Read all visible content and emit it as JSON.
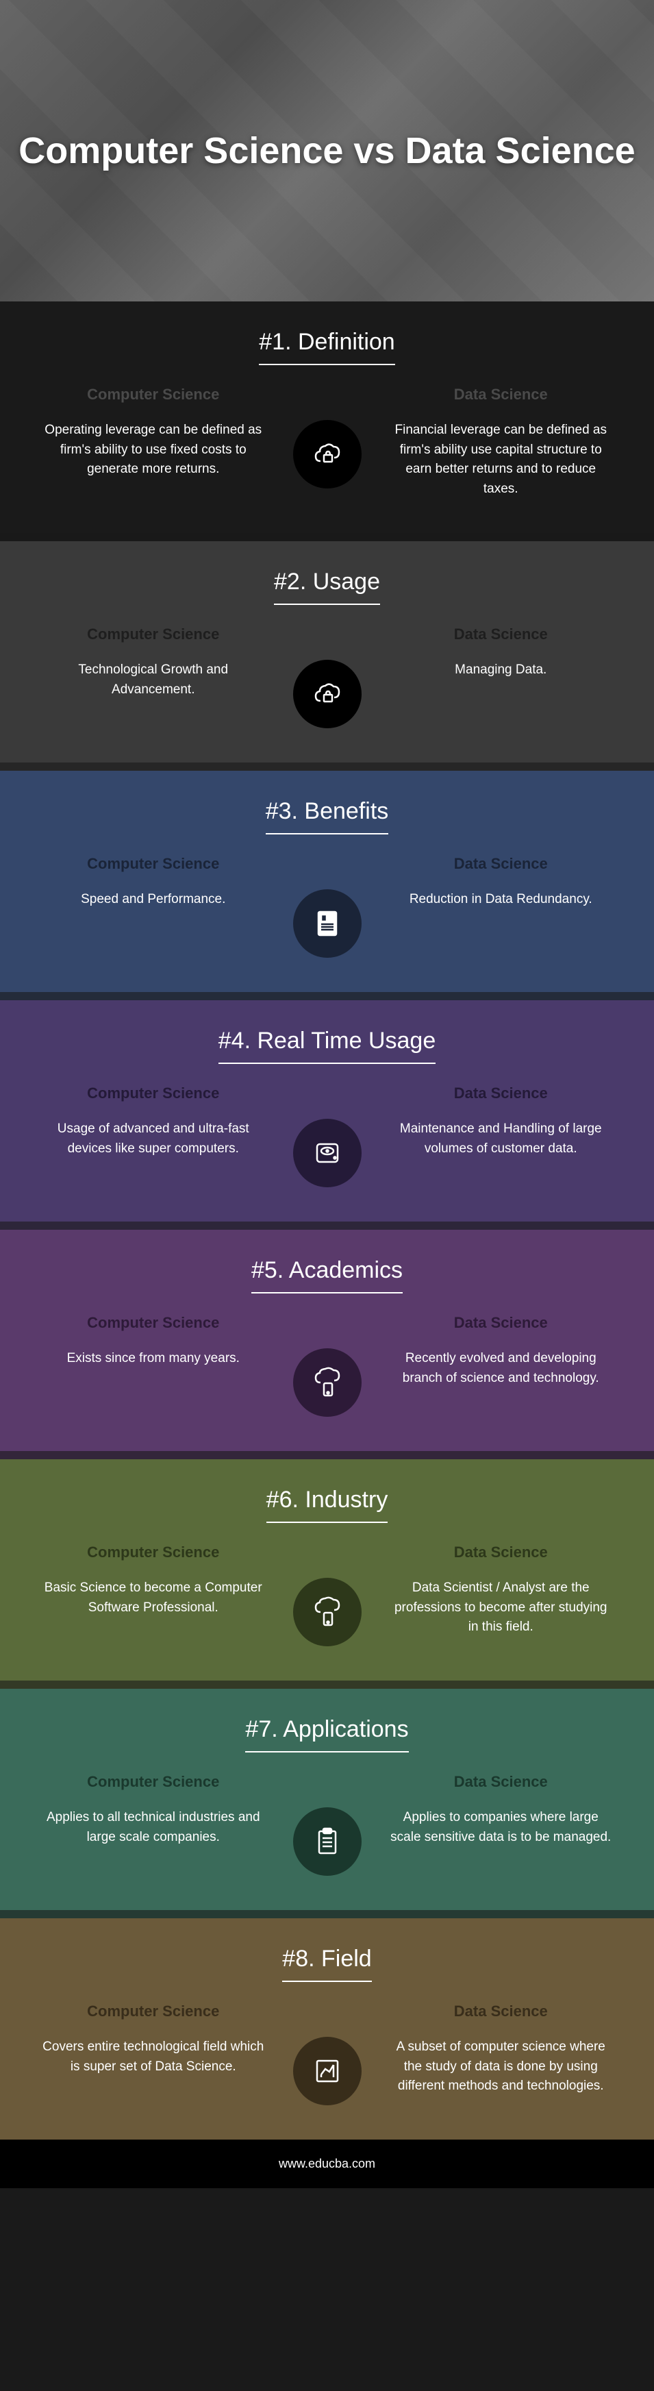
{
  "hero": {
    "title": "Computer Science vs Data Science"
  },
  "footer": {
    "url": "www.educba.com"
  },
  "labels": {
    "left": "Computer Science",
    "right": "Data Science"
  },
  "sections": [
    {
      "title": "#1. Definition",
      "bg": "#1a1a1a",
      "header_color": "#4a4a4a",
      "icon_bg": "#000000",
      "icon_stroke": "#ffffff",
      "icon": "cloud-lock",
      "left": "Operating leverage can be defined as firm's ability to use fixed costs to generate more returns.",
      "right": "Financial leverage can be defined as firm's ability use capital structure to earn better returns and to reduce taxes."
    },
    {
      "title": "#2. Usage",
      "bg": "#3a3a3a",
      "header_color": "#1e1e1e",
      "icon_bg": "#000000",
      "icon_stroke": "#ffffff",
      "icon": "cloud-lock",
      "left": "Technological Growth and Advancement.",
      "right": "Managing Data."
    },
    {
      "title": "#3. Benefits",
      "bg": "#34476b",
      "header_color": "#1a2438",
      "icon_bg": "#1a2438",
      "icon_stroke": "#ffffff",
      "icon": "document",
      "left": "Speed and Performance.",
      "right": "Reduction in Data Redundancy."
    },
    {
      "title": "#4. Real Time Usage",
      "bg": "#4a3a6b",
      "header_color": "#241a38",
      "icon_bg": "#241a38",
      "icon_stroke": "#ffffff",
      "icon": "disk",
      "left": "Usage of advanced and ultra-fast devices like super computers.",
      "right": "Maintenance and Handling of large volumes of customer data."
    },
    {
      "title": "#5. Academics",
      "bg": "#5a3a6b",
      "header_color": "#2d1a38",
      "icon_bg": "#2d1a38",
      "icon_stroke": "#ffffff",
      "icon": "cloud-device",
      "left": "Exists since from many years.",
      "right": "Recently evolved and developing branch of science and technology."
    },
    {
      "title": "#6. Industry",
      "bg": "#5a6b3a",
      "header_color": "#2d381a",
      "icon_bg": "#2d381a",
      "icon_stroke": "#ffffff",
      "icon": "cloud-device",
      "left": "Basic Science to become a Computer Software Professional.",
      "right": "Data Scientist / Analyst are the professions to become after studying in this field."
    },
    {
      "title": "#7. Applications",
      "bg": "#3a6b5a",
      "header_color": "#1a382d",
      "icon_bg": "#1a382d",
      "icon_stroke": "#ffffff",
      "icon": "clipboard",
      "left": "Applies to all technical industries and large scale companies.",
      "right": "Applies to companies where large scale sensitive data is to be managed."
    },
    {
      "title": "#8. Field",
      "bg": "#6b5a3a",
      "header_color": "#382d1a",
      "icon_bg": "#382d1a",
      "icon_stroke": "#ffffff",
      "icon": "chart",
      "left": "Covers entire technological field which is super set of Data Science.",
      "right": "A subset of computer science where the study of data is done by using different methods and technologies."
    }
  ]
}
